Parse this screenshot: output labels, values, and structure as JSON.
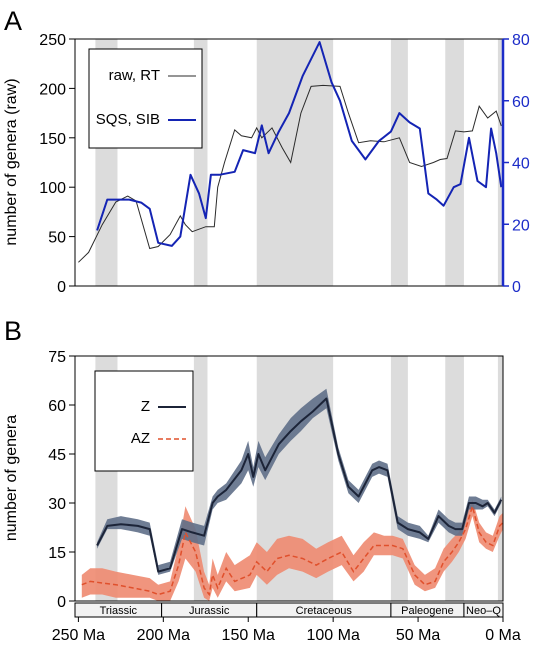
{
  "colors": {
    "shade": "#dcdcdc",
    "raw_line": "#2b2b2b",
    "sqs_line": "#1424b4",
    "right_axis": "#1c2cc8",
    "z_line": "#1c2438",
    "z_band": "#5f6f88",
    "az_line": "#e0502c",
    "az_band": "#ee8a70"
  },
  "chart_data": [
    {
      "panel_label": "A",
      "type": "line",
      "ylabel": "number of genera (raw)",
      "ylim": [
        0,
        250
      ],
      "yticks": [
        0,
        50,
        100,
        150,
        200,
        250
      ],
      "y2lim": [
        0,
        80
      ],
      "y2ticks": [
        0,
        20,
        40,
        60,
        80
      ],
      "xlim": [
        252,
        0
      ],
      "shaded_intervals": [
        [
          240,
          227
        ],
        [
          182,
          174
        ],
        [
          145,
          100
        ],
        [
          66,
          56
        ],
        [
          34,
          23
        ],
        [
          3,
          0
        ]
      ],
      "legend": {
        "position": "top-left"
      },
      "series": [
        {
          "name": "raw, RT",
          "axis": "left",
          "x": [
            250,
            244,
            236,
            228,
            221,
            216,
            214,
            208,
            203,
            196,
            190,
            187,
            183,
            175,
            170,
            168,
            164,
            158,
            154,
            148,
            145,
            142,
            136,
            130,
            125,
            119,
            113,
            106,
            96,
            91,
            85,
            78,
            70,
            61,
            55,
            48,
            41,
            37,
            33,
            28,
            23,
            18,
            14,
            9,
            4,
            1
          ],
          "y": [
            24,
            34,
            62,
            85,
            91,
            86,
            74,
            38,
            40,
            52,
            71,
            62,
            55,
            60,
            60,
            100,
            125,
            158,
            152,
            150,
            160,
            150,
            160,
            140,
            125,
            175,
            202,
            203,
            202,
            175,
            145,
            147,
            146,
            150,
            125,
            121,
            125,
            128,
            129,
            157,
            156,
            157,
            182,
            170,
            177,
            162
          ]
        },
        {
          "name": "SQS, SIB",
          "axis": "right",
          "x": [
            239,
            233,
            226,
            220,
            213,
            208,
            203,
            195,
            190,
            184,
            179,
            175,
            172,
            167,
            158,
            153,
            146,
            142,
            138,
            132,
            126,
            118,
            108,
            101,
            96,
            89,
            81,
            73,
            66,
            61,
            55,
            49,
            44,
            39,
            35,
            29,
            25,
            20,
            15,
            10,
            7,
            4,
            1
          ],
          "y": [
            18,
            28,
            28,
            28,
            27,
            25,
            14,
            13,
            16,
            36,
            30,
            22,
            36,
            36,
            37,
            44,
            43,
            52,
            43,
            50,
            56,
            68,
            79,
            66,
            60,
            47,
            41,
            47,
            50,
            56,
            53,
            51,
            30,
            28,
            26,
            32,
            33,
            48,
            34,
            32,
            51,
            43,
            32
          ]
        }
      ]
    },
    {
      "panel_label": "B",
      "type": "line",
      "ylabel": "number of genera",
      "ylim": [
        0,
        75
      ],
      "yticks": [
        0,
        15,
        30,
        45,
        60,
        75
      ],
      "xlim": [
        252,
        0
      ],
      "xticks": [
        250,
        200,
        150,
        100,
        50,
        0
      ],
      "xticklabels": [
        "250 Ma",
        "200 Ma",
        "150 Ma",
        "100 Ma",
        "50 Ma",
        "0 Ma"
      ],
      "shaded_intervals": [
        [
          240,
          227
        ],
        [
          182,
          174
        ],
        [
          145,
          100
        ],
        [
          66,
          56
        ],
        [
          34,
          23
        ],
        [
          3,
          0
        ]
      ],
      "legend": {
        "position": "top-left"
      },
      "periods": [
        {
          "name": "Triassic",
          "start": 252,
          "end": 201
        },
        {
          "name": "Jurassic",
          "start": 201,
          "end": 145
        },
        {
          "name": "Cretaceous",
          "start": 145,
          "end": 66
        },
        {
          "name": "Paleogene",
          "start": 66,
          "end": 23
        },
        {
          "name": "Neo–Q",
          "start": 23,
          "end": 0
        }
      ],
      "series": [
        {
          "name": "Z",
          "x": [
            239,
            233,
            225,
            215,
            208,
            203,
            196,
            189,
            183,
            176,
            171,
            168,
            163,
            154,
            150,
            147,
            144,
            140,
            132,
            125,
            119,
            112,
            104,
            97,
            91,
            85,
            77,
            73,
            68,
            62,
            56,
            49,
            44,
            38,
            32,
            28,
            24,
            20,
            16,
            12,
            9,
            5,
            1
          ],
          "y": [
            17,
            23,
            23.5,
            23,
            22,
            9,
            10,
            22,
            21,
            20,
            30,
            32,
            34,
            40,
            45,
            38,
            45,
            40,
            48,
            52,
            55,
            58,
            62,
            45,
            35,
            32,
            40,
            41,
            40,
            24,
            22,
            21,
            19,
            26,
            23,
            22,
            22,
            30,
            30,
            29,
            30,
            27,
            31
          ],
          "lower": [
            16,
            22,
            22,
            21,
            20,
            8,
            9,
            19,
            18,
            17,
            28,
            30,
            31,
            36,
            40,
            35,
            41,
            37,
            45,
            49,
            52,
            56,
            59,
            43,
            33,
            30,
            38,
            39,
            38,
            22,
            20,
            19,
            18,
            24,
            21,
            20,
            20,
            28,
            28,
            28,
            29,
            26,
            30
          ],
          "upper": [
            18,
            25,
            26,
            25,
            24,
            11,
            12,
            25,
            24,
            23,
            32,
            34,
            36,
            43,
            49,
            41,
            49,
            44,
            51,
            56,
            59,
            62,
            65,
            47,
            37,
            34,
            42,
            43,
            42,
            26,
            24,
            23,
            20,
            28,
            25,
            24,
            24,
            32,
            32,
            31,
            31,
            28,
            32
          ]
        },
        {
          "name": "AZ",
          "x": [
            248,
            243,
            236,
            228,
            218,
            208,
            203,
            196,
            191,
            187,
            181,
            176,
            173,
            171,
            168,
            163,
            158,
            149,
            145,
            139,
            133,
            126,
            118,
            110,
            103,
            95,
            88,
            82,
            76,
            70,
            65,
            59,
            52,
            46,
            40,
            35,
            30,
            26,
            22,
            18,
            14,
            10,
            6,
            2,
            0
          ],
          "y": [
            5,
            6,
            5.5,
            5,
            4,
            3,
            2,
            3,
            11,
            21,
            15,
            4,
            2,
            8,
            4,
            10,
            6,
            8,
            12,
            9,
            13,
            14,
            13,
            11,
            13,
            15,
            9,
            13,
            17,
            17,
            17,
            16,
            8,
            5,
            6,
            12,
            15,
            18,
            22,
            29,
            21,
            18,
            17,
            23,
            24
          ],
          "lower": [
            1,
            2,
            2,
            1,
            1,
            1,
            0,
            0,
            6,
            13,
            9,
            1,
            0,
            4,
            1,
            6,
            3,
            4,
            8,
            5,
            8,
            10,
            9,
            7,
            9,
            11,
            6,
            9,
            14,
            14,
            14,
            13,
            5,
            3,
            4,
            9,
            12,
            15,
            19,
            26,
            18,
            16,
            15,
            20,
            22
          ],
          "upper": [
            8,
            10,
            10,
            9,
            8,
            7,
            5,
            6,
            17,
            29,
            22,
            9,
            5,
            13,
            8,
            15,
            11,
            14,
            18,
            15,
            19,
            20,
            19,
            16,
            18,
            20,
            14,
            18,
            21,
            20,
            20,
            19,
            11,
            8,
            10,
            16,
            19,
            21,
            26,
            31,
            24,
            21,
            20,
            26,
            27
          ]
        }
      ]
    }
  ]
}
